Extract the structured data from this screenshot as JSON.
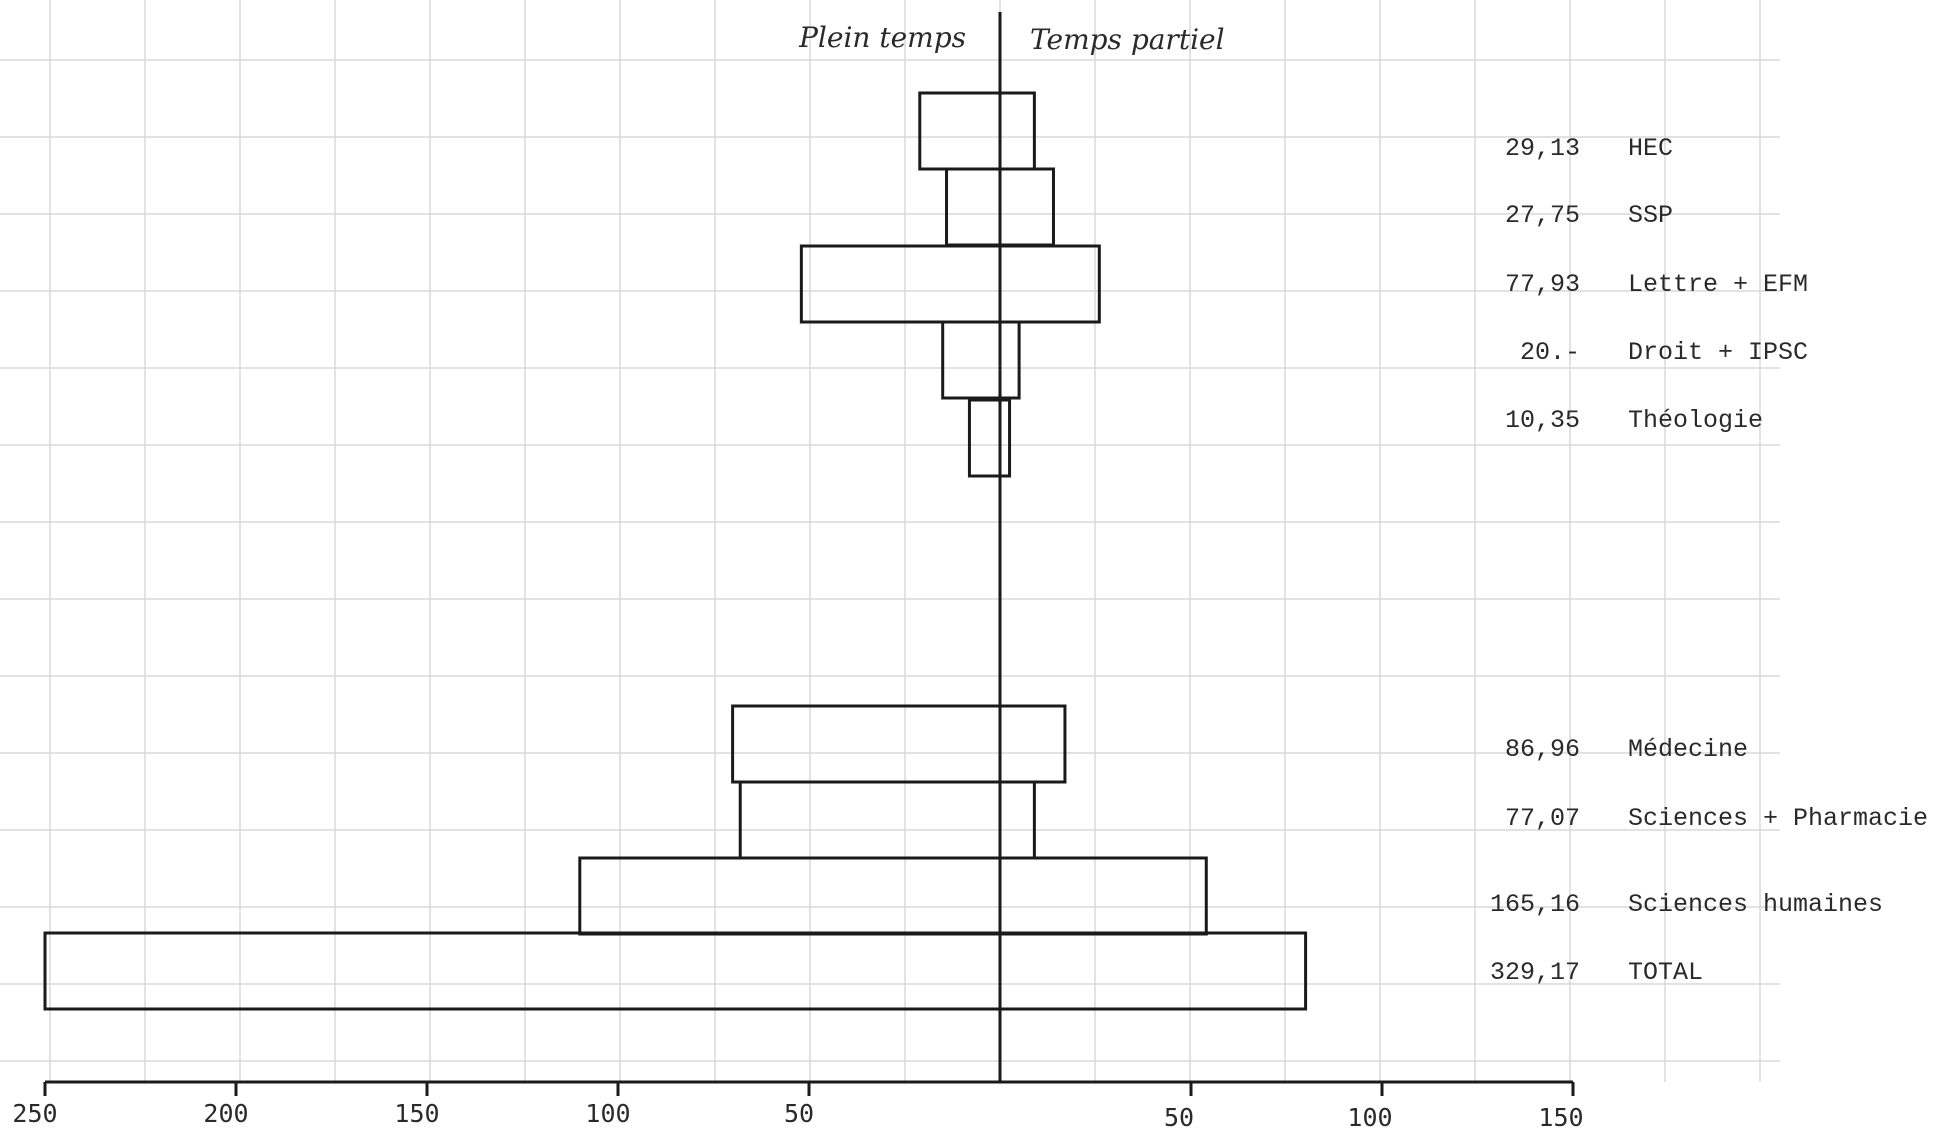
{
  "chart_data": {
    "type": "bar",
    "orientation": "horizontal",
    "layout": "diverging",
    "left_header": "Plein temps",
    "right_header": "Temps partiel",
    "x_range_left": [
      0,
      250
    ],
    "x_range_right": [
      0,
      150
    ],
    "tick_labels_left": [
      "250",
      "200",
      "150",
      "100",
      "50"
    ],
    "tick_labels_right": [
      "50",
      "100",
      "150"
    ],
    "grid": true,
    "categories": [
      "HEC",
      "SSP",
      "Lettre + EFM",
      "Droit + IPSC",
      "Théologie",
      "Médecine",
      "Sciences + Pharmacie",
      "Sciences humaines",
      "TOTAL"
    ],
    "value_labels": [
      "29,13",
      "27,75",
      "77,93",
      "20.-",
      "10,35",
      "86,96",
      "77,07",
      "165,16",
      "329,17"
    ],
    "series": [
      {
        "values": [
          21,
          14,
          52,
          15,
          8,
          70,
          68,
          110,
          250
        ]
      },
      {
        "values": [
          9,
          14,
          26,
          5,
          2.5,
          17,
          9,
          54,
          80
        ]
      }
    ]
  }
}
